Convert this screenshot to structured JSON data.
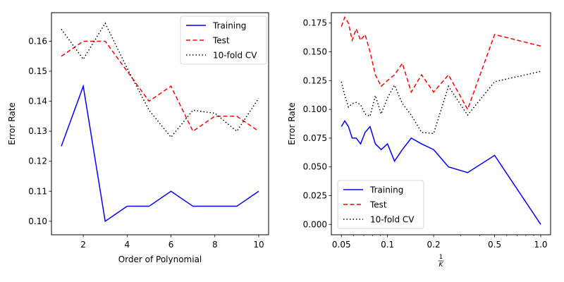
{
  "chart_data": [
    {
      "type": "line",
      "xlabel": "Order of Polynomial",
      "ylabel": "Error Rate",
      "xlim": [
        0.55,
        10.45
      ],
      "ylim": [
        0.0955,
        0.1695
      ],
      "xticks": [
        2,
        4,
        6,
        8,
        10
      ],
      "xtick_labels": [
        "2",
        "4",
        "6",
        "8",
        "10"
      ],
      "yticks": [
        0.1,
        0.11,
        0.12,
        0.13,
        0.14,
        0.15,
        0.16
      ],
      "ytick_labels": [
        "0.10",
        "0.11",
        "0.12",
        "0.13",
        "0.14",
        "0.15",
        "0.16"
      ],
      "x_scale": "linear",
      "grid": false,
      "legend_position": "top-right",
      "series": [
        {
          "name": "Training",
          "color": "#0000ff",
          "dash": "solid",
          "x": [
            1,
            2,
            3,
            4,
            5,
            6,
            7,
            8,
            9,
            10
          ],
          "values": [
            0.125,
            0.145,
            0.1,
            0.105,
            0.105,
            0.11,
            0.105,
            0.105,
            0.105,
            0.11
          ]
        },
        {
          "name": "Test",
          "color": "#ff0000",
          "dash": "dashed",
          "x": [
            1,
            2,
            3,
            4,
            5,
            6,
            7,
            8,
            9,
            10
          ],
          "values": [
            0.155,
            0.16,
            0.16,
            0.15,
            0.14,
            0.145,
            0.13,
            0.135,
            0.135,
            0.13
          ]
        },
        {
          "name": "10-fold CV",
          "color": "#000000",
          "dash": "dotted",
          "x": [
            1,
            2,
            3,
            4,
            5,
            6,
            7,
            8,
            9,
            10
          ],
          "values": [
            0.164,
            0.154,
            0.166,
            0.151,
            0.137,
            0.128,
            0.137,
            0.136,
            0.13,
            0.141
          ]
        }
      ]
    },
    {
      "type": "line",
      "xlabel": "1/K",
      "ylabel": "Error Rate",
      "xlim": [
        0.043,
        1.16
      ],
      "ylim": [
        -0.009,
        0.184
      ],
      "xticks": [
        0.05,
        0.1,
        0.2,
        0.5,
        1.0
      ],
      "xtick_labels": [
        "0.05",
        "0.1",
        "0.2",
        "0.5",
        "1.0"
      ],
      "yticks": [
        0.0,
        0.025,
        0.05,
        0.075,
        0.1,
        0.125,
        0.15,
        0.175
      ],
      "ytick_labels": [
        "0.000",
        "0.025",
        "0.050",
        "0.075",
        "0.100",
        "0.125",
        "0.150",
        "0.175"
      ],
      "x_scale": "log",
      "grid": false,
      "legend_position": "bottom-left",
      "series": [
        {
          "name": "Training",
          "color": "#0000ff",
          "dash": "solid",
          "x": [
            0.05,
            0.0526,
            0.0556,
            0.0588,
            0.0625,
            0.0667,
            0.0714,
            0.0769,
            0.0833,
            0.0909,
            0.1,
            0.1111,
            0.125,
            0.1429,
            0.1667,
            0.2,
            0.25,
            0.3333,
            0.5,
            1.0
          ],
          "values": [
            0.085,
            0.09,
            0.085,
            0.075,
            0.075,
            0.07,
            0.08,
            0.085,
            0.07,
            0.065,
            0.07,
            0.055,
            0.065,
            0.075,
            0.07,
            0.065,
            0.05,
            0.045,
            0.06,
            0.0
          ]
        },
        {
          "name": "Test",
          "color": "#ff0000",
          "dash": "dashed",
          "x": [
            0.05,
            0.0526,
            0.0556,
            0.0588,
            0.0625,
            0.0667,
            0.0714,
            0.0769,
            0.0833,
            0.0909,
            0.1,
            0.1111,
            0.125,
            0.1429,
            0.1667,
            0.2,
            0.25,
            0.3333,
            0.5,
            1.0
          ],
          "values": [
            0.172,
            0.18,
            0.175,
            0.16,
            0.17,
            0.16,
            0.165,
            0.15,
            0.13,
            0.12,
            0.125,
            0.13,
            0.14,
            0.115,
            0.13,
            0.115,
            0.13,
            0.1,
            0.165,
            0.155
          ]
        },
        {
          "name": "10-fold CV",
          "color": "#000000",
          "dash": "dotted",
          "x": [
            0.05,
            0.0526,
            0.0556,
            0.0588,
            0.0625,
            0.0667,
            0.0714,
            0.0769,
            0.0833,
            0.0909,
            0.1,
            0.1111,
            0.125,
            0.1429,
            0.1667,
            0.2,
            0.25,
            0.3333,
            0.5,
            1.0
          ],
          "values": [
            0.124,
            0.112,
            0.102,
            0.105,
            0.106,
            0.104,
            0.096,
            0.094,
            0.112,
            0.096,
            0.11,
            0.121,
            0.105,
            0.095,
            0.08,
            0.079,
            0.12,
            0.095,
            0.124,
            0.133
          ]
        }
      ]
    }
  ]
}
